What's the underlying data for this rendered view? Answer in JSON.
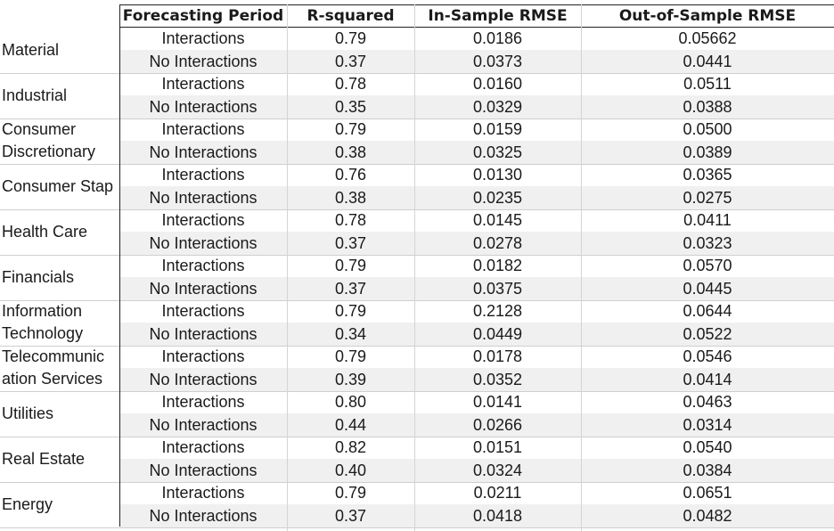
{
  "table": {
    "headers": [
      "Forecasting Period",
      "R-squared",
      "In-Sample RMSE",
      "Out-of-Sample RMSE"
    ],
    "rows": [
      {
        "sector": [
          "Material"
        ],
        "int": [
          "Interactions",
          "0.79",
          "0.0186",
          "0.05662"
        ],
        "noint": [
          "No Interactions",
          "0.37",
          "0.0373",
          "0.0441"
        ]
      },
      {
        "sector": [
          "Industrial"
        ],
        "int": [
          "Interactions",
          "0.78",
          "0.0160",
          "0.0511"
        ],
        "noint": [
          "No Interactions",
          "0.35",
          "0.0329",
          "0.0388"
        ]
      },
      {
        "sector": [
          "Consumer",
          "Discretionary"
        ],
        "int": [
          "Interactions",
          "0.79",
          "0.0159",
          "0.0500"
        ],
        "noint": [
          "No Interactions",
          "0.38",
          "0.0325",
          "0.0389"
        ]
      },
      {
        "sector": [
          "Consumer Stap"
        ],
        "int": [
          "Interactions",
          "0.76",
          "0.0130",
          "0.0365"
        ],
        "noint": [
          "No Interactions",
          "0.38",
          "0.0235",
          "0.0275"
        ]
      },
      {
        "sector": [
          "Health Care"
        ],
        "int": [
          "Interactions",
          "0.78",
          "0.0145",
          "0.0411"
        ],
        "noint": [
          "No Interactions",
          "0.37",
          "0.0278",
          "0.0323"
        ]
      },
      {
        "sector": [
          "Financials"
        ],
        "int": [
          "Interactions",
          "0.79",
          "0.0182",
          "0.0570"
        ],
        "noint": [
          "No Interactions",
          "0.37",
          "0.0375",
          "0.0445"
        ]
      },
      {
        "sector": [
          "Information",
          "Technology"
        ],
        "int": [
          "Interactions",
          "0.79",
          "0.2128",
          "0.0644"
        ],
        "noint": [
          "No Interactions",
          "0.34",
          "0.0449",
          "0.0522"
        ]
      },
      {
        "sector": [
          "Telecommunic",
          "ation Services"
        ],
        "int": [
          "Interactions",
          "0.79",
          "0.0178",
          "0.0546"
        ],
        "noint": [
          "No Interactions",
          "0.39",
          "0.0352",
          "0.0414"
        ]
      },
      {
        "sector": [
          "Utilities"
        ],
        "int": [
          "Interactions",
          "0.80",
          "0.0141",
          "0.0463"
        ],
        "noint": [
          "No Interactions",
          "0.44",
          "0.0266",
          "0.0314"
        ]
      },
      {
        "sector": [
          "Real Estate"
        ],
        "int": [
          "Interactions",
          "0.82",
          "0.0151",
          "0.0540"
        ],
        "noint": [
          "No Interactions",
          "0.40",
          "0.0324",
          "0.0384"
        ]
      },
      {
        "sector": [
          "Energy"
        ],
        "int": [
          "Interactions",
          "0.79",
          "0.0211",
          "0.0651"
        ],
        "noint": [
          "No Interactions",
          "0.37",
          "0.0418",
          "0.0482"
        ]
      }
    ]
  }
}
